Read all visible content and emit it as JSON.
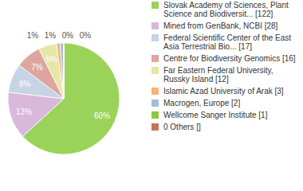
{
  "chart_data": {
    "type": "pie",
    "categories": [
      "Slovak Academy of Sciences, Plant Science and Biodiversit... [122]",
      "Mined from GenBank, NCBI [28]",
      "Federal Scientific Center of the East Asia Terrestrial Bio... [17]",
      "Centre for Biodiversity Genomics [16]",
      "Far Eastern Federal University, Russky Island [12]",
      "Islamic Azad University of Arak [3]",
      "Macrogen, Europe [2]",
      "Wellcome Sanger Institute [1]",
      "0 Others []"
    ],
    "values": [
      60,
      13,
      8,
      7,
      5,
      1,
      1,
      0,
      0
    ],
    "value_labels": [
      "60%",
      "13%",
      "8%",
      "7%",
      "5%",
      "1%",
      "1%",
      "0%",
      "0%"
    ],
    "colors": [
      "#9bd35a",
      "#d9b8dc",
      "#c6d4e4",
      "#dea59e",
      "#e6e6a6",
      "#f2b477",
      "#a7bcd9",
      "#8dc63f",
      "#c9705e"
    ],
    "data_labels": true,
    "legend": "right"
  }
}
